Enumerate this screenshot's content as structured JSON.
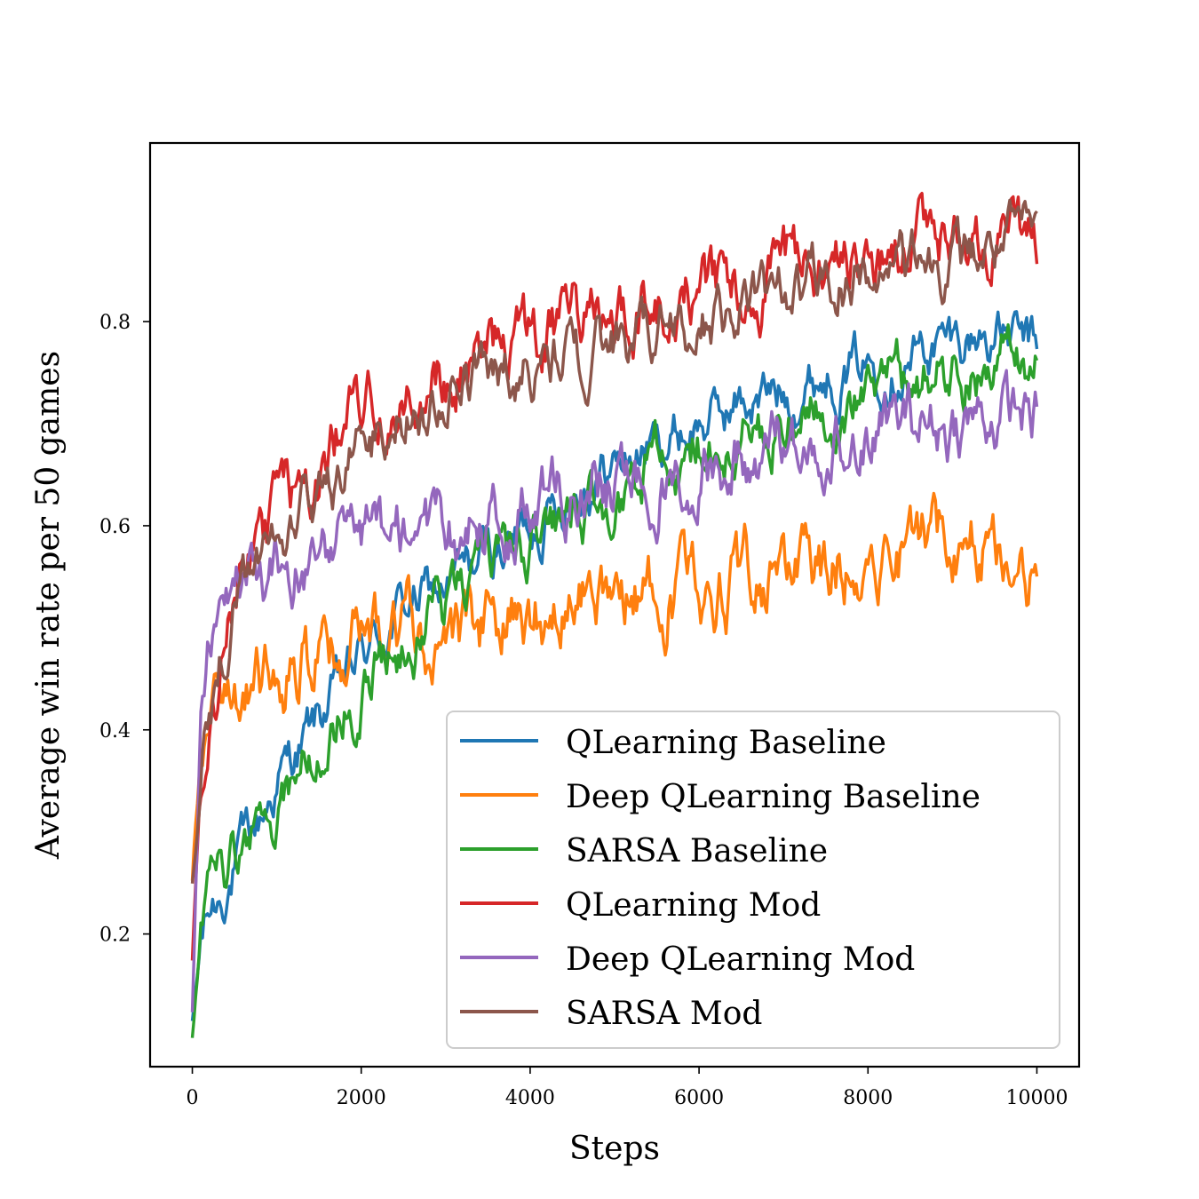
{
  "chart_data": {
    "type": "line",
    "xlabel": "Steps",
    "ylabel": "Average win rate per 50 games",
    "xlim": [
      -500,
      10500
    ],
    "ylim": [
      0.07,
      0.975
    ],
    "xticks": [
      0,
      2000,
      4000,
      6000,
      8000,
      10000
    ],
    "yticks": [
      0.2,
      0.4,
      0.6,
      0.8
    ],
    "xtick_labels": [
      "0",
      "2000",
      "4000",
      "6000",
      "8000",
      "10000"
    ],
    "ytick_labels": [
      "0.2",
      "0.4",
      "0.6",
      "0.8"
    ],
    "grid": false,
    "legend_position": "lower-right",
    "x": [
      0,
      100,
      200,
      400,
      600,
      800,
      1000,
      1500,
      2000,
      2500,
      3000,
      3500,
      4000,
      4500,
      5000,
      5500,
      6000,
      6500,
      7000,
      7500,
      8000,
      8500,
      9000,
      9500,
      10000
    ],
    "series": [
      {
        "name": "QLearning Baseline",
        "color": "#1f77b4",
        "noise": 0.018,
        "values": [
          0.11,
          0.19,
          0.22,
          0.25,
          0.28,
          0.31,
          0.35,
          0.41,
          0.47,
          0.52,
          0.54,
          0.57,
          0.6,
          0.64,
          0.66,
          0.68,
          0.7,
          0.72,
          0.73,
          0.75,
          0.76,
          0.77,
          0.78,
          0.79,
          0.77
        ]
      },
      {
        "name": "Deep QLearning Baseline",
        "color": "#ff7f0e",
        "noise": 0.025,
        "values": [
          0.25,
          0.38,
          0.4,
          0.41,
          0.43,
          0.44,
          0.45,
          0.47,
          0.48,
          0.49,
          0.5,
          0.5,
          0.51,
          0.52,
          0.52,
          0.53,
          0.55,
          0.55,
          0.55,
          0.56,
          0.58,
          0.58,
          0.59,
          0.59,
          0.55
        ]
      },
      {
        "name": "SARSA Baseline",
        "color": "#2ca02c",
        "noise": 0.02,
        "values": [
          0.1,
          0.2,
          0.24,
          0.26,
          0.28,
          0.3,
          0.33,
          0.39,
          0.44,
          0.49,
          0.52,
          0.55,
          0.58,
          0.61,
          0.63,
          0.66,
          0.68,
          0.69,
          0.7,
          0.72,
          0.73,
          0.74,
          0.75,
          0.76,
          0.77
        ]
      },
      {
        "name": "QLearning Mod",
        "color": "#d62728",
        "noise": 0.022,
        "values": [
          0.18,
          0.36,
          0.42,
          0.48,
          0.55,
          0.58,
          0.61,
          0.64,
          0.72,
          0.74,
          0.75,
          0.77,
          0.79,
          0.8,
          0.81,
          0.82,
          0.83,
          0.84,
          0.85,
          0.86,
          0.87,
          0.87,
          0.88,
          0.89,
          0.87
        ]
      },
      {
        "name": "Deep QLearning Mod",
        "color": "#9467bd",
        "noise": 0.022,
        "values": [
          0.12,
          0.42,
          0.48,
          0.52,
          0.55,
          0.55,
          0.56,
          0.57,
          0.58,
          0.59,
          0.59,
          0.6,
          0.62,
          0.63,
          0.64,
          0.65,
          0.66,
          0.67,
          0.68,
          0.69,
          0.69,
          0.7,
          0.7,
          0.71,
          0.71
        ]
      },
      {
        "name": "SARSA Mod",
        "color": "#8c564b",
        "noise": 0.02,
        "values": [
          0.25,
          0.33,
          0.42,
          0.49,
          0.54,
          0.57,
          0.6,
          0.63,
          0.68,
          0.71,
          0.73,
          0.75,
          0.76,
          0.77,
          0.78,
          0.79,
          0.8,
          0.82,
          0.83,
          0.84,
          0.85,
          0.85,
          0.86,
          0.87,
          0.88
        ]
      }
    ]
  }
}
